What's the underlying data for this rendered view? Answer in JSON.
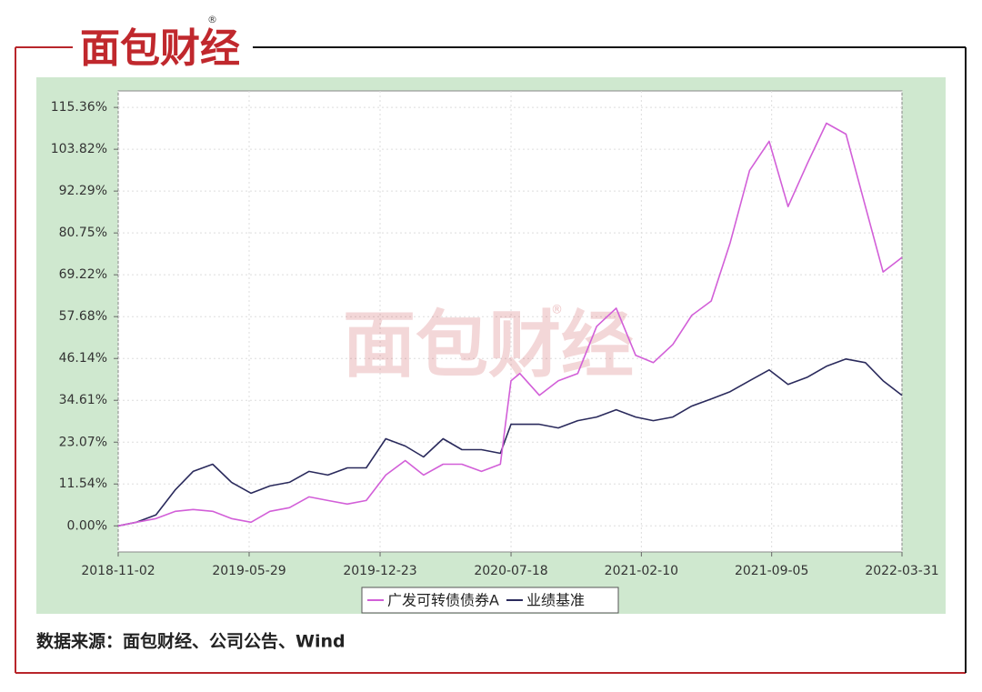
{
  "header": {
    "logo": "面包财经",
    "mark": "®"
  },
  "chart_data": {
    "type": "line",
    "x": [
      "2018-11-02",
      "2018-12-01",
      "2019-01-01",
      "2019-02-01",
      "2019-03-01",
      "2019-04-01",
      "2019-05-01",
      "2019-06-01",
      "2019-07-01",
      "2019-08-01",
      "2019-09-01",
      "2019-10-01",
      "2019-11-01",
      "2019-12-01",
      "2020-01-01",
      "2020-02-01",
      "2020-03-01",
      "2020-04-01",
      "2020-05-01",
      "2020-06-01",
      "2020-07-01",
      "2020-07-18",
      "2020-08-01",
      "2020-09-01",
      "2020-10-01",
      "2020-11-01",
      "2020-12-01",
      "2021-01-01",
      "2021-02-01",
      "2021-03-01",
      "2021-04-01",
      "2021-05-01",
      "2021-06-01",
      "2021-07-01",
      "2021-08-01",
      "2021-09-01",
      "2021-10-01",
      "2021-11-01",
      "2021-12-01",
      "2022-01-01",
      "2022-02-01",
      "2022-03-01",
      "2022-03-31"
    ],
    "series": [
      {
        "name": "广发可转债债券A",
        "color": "#d25fd8",
        "values": [
          0,
          1,
          2,
          4,
          4.5,
          4,
          2,
          1,
          4,
          5,
          8,
          7,
          6,
          7,
          14,
          18,
          14,
          17,
          17,
          15,
          17,
          40,
          42,
          36,
          40,
          42,
          55,
          60,
          47,
          45,
          50,
          58,
          62,
          78,
          98,
          106,
          88,
          100,
          111,
          108,
          88,
          70,
          74
        ]
      },
      {
        "name": "业绩基准",
        "color": "#2a2a5c",
        "values": [
          0,
          1,
          3,
          10,
          15,
          17,
          12,
          9,
          11,
          12,
          15,
          14,
          16,
          16,
          24,
          22,
          19,
          24,
          21,
          21,
          20,
          28,
          28,
          28,
          27,
          29,
          30,
          32,
          30,
          29,
          30,
          33,
          35,
          37,
          40,
          43,
          39,
          41,
          44,
          46,
          45,
          40,
          36
        ]
      }
    ],
    "xlim": [
      "2018-11-02",
      "2022-03-31"
    ],
    "xticks": [
      "2018-11-02",
      "2019-05-29",
      "2019-12-23",
      "2020-07-18",
      "2021-02-10",
      "2021-09-05",
      "2022-03-31"
    ],
    "ylim": [
      -7.2,
      119.9
    ],
    "yticks": [
      {
        "value": 0,
        "label": "0.00%"
      },
      {
        "value": 11.54,
        "label": "11.54%"
      },
      {
        "value": 23.07,
        "label": "23.07%"
      },
      {
        "value": 34.61,
        "label": "34.61%"
      },
      {
        "value": 46.14,
        "label": "46.14%"
      },
      {
        "value": 57.68,
        "label": "57.68%"
      },
      {
        "value": 69.22,
        "label": "69.22%"
      },
      {
        "value": 80.75,
        "label": "80.75%"
      },
      {
        "value": 92.29,
        "label": "92.29%"
      },
      {
        "value": 103.82,
        "label": "103.82%"
      },
      {
        "value": 115.36,
        "label": "115.36%"
      }
    ],
    "grid": true,
    "legend": "bottom"
  },
  "footer": {
    "source": "数据来源：面包财经、公司公告、Wind"
  }
}
